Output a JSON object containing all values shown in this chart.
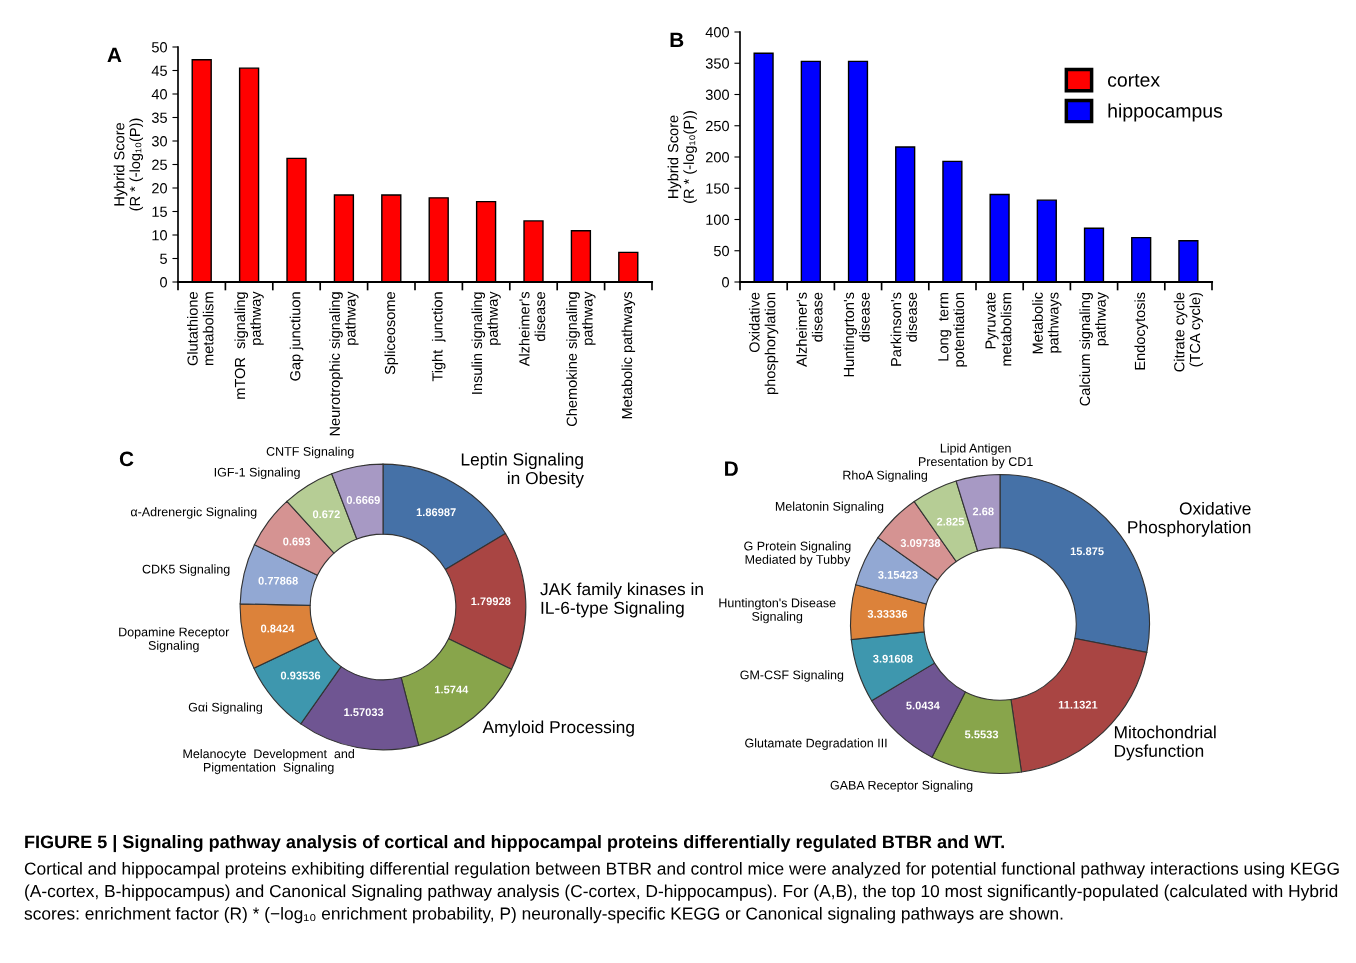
{
  "chart_data": [
    {
      "type": "bar",
      "title": "A",
      "ylabel": "Hybrid Score\n(R * (-log₁₀(P))",
      "categories": [
        "Glutathione\nmetabolism",
        "mTOR  signaling\npathway",
        "Gap junctiuon",
        "Neurotrophic signaling\npathway",
        "Spliceosome",
        "Tight  junction",
        "Insulin signaling\npathway",
        "Alzheimer's\ndisease",
        "Chemokine signaling\npathway",
        "Metabolic pathways"
      ],
      "series": [
        {
          "name": "cortex",
          "color": "#ff0000",
          "values": [
            47.3,
            45.5,
            26.3,
            18.5,
            18.5,
            17.9,
            17.1,
            13.0,
            10.9,
            6.3
          ]
        }
      ],
      "ylim": [
        0,
        50
      ],
      "yticks": [
        0,
        5,
        10,
        15,
        20,
        25,
        30,
        35,
        40,
        45,
        50
      ],
      "grid": false
    },
    {
      "type": "bar",
      "title": "B",
      "ylabel": "Hybrid Score\n(R * (-log₁₀(P))",
      "categories": [
        "Oxidative\nphosphorylation",
        "Alzheimer's\ndisease",
        "Huntingrton's\ndisease",
        "Parkinson's\ndisease",
        "Long  term\npotentiation",
        "Pyruvate\nmetabolism",
        "Metabolic\npathways",
        "Calcium signaling\npathway",
        "Endocytosis",
        "Citrate cycle\n(TCA cycle)"
      ],
      "series": [
        {
          "name": "hippocampus",
          "color": "#0000ff",
          "values": [
            366,
            353,
            353,
            216,
            193,
            140,
            131,
            86,
            71,
            66
          ]
        }
      ],
      "ylim": [
        0,
        400
      ],
      "yticks": [
        0,
        50,
        100,
        150,
        200,
        250,
        300,
        350,
        400
      ],
      "grid": false,
      "legend": "top right"
    },
    {
      "type": "donut",
      "title": "C",
      "categories": [
        "Leptin Signaling\nin Obesity",
        "JAK family kinases in\nIL-6-type Signaling",
        "Amyloid Processing",
        "Melanocyte  Development  and\nPigmentation  Signaling",
        "Gαi Signaling",
        "Dopamine Receptor\nSignaling",
        "CDK5 Signaling",
        "α-Adrenergic Signaling",
        "IGF-1 Signaling",
        "CNTF Signaling"
      ],
      "values": [
        1.86987,
        1.79928,
        1.5744,
        1.57033,
        0.93536,
        0.8424,
        0.77868,
        0.693,
        0.672,
        0.6669
      ],
      "colors": [
        "#4571a7",
        "#a94543",
        "#88a54b",
        "#6f5592",
        "#3e97ae",
        "#dc823a",
        "#92a8d3",
        "#d59392",
        "#b6cd95",
        "#a799c4"
      ],
      "data_labels": true
    },
    {
      "type": "donut",
      "title": "D",
      "categories": [
        "Oxidative\nPhosphorylation",
        "Mitochondrial\nDysfunction",
        "GABA Receptor Signaling",
        "Glutamate Degradation III",
        "GM-CSF Signaling",
        "Huntington's Disease\nSignaling",
        "G Protein Signaling\nMediated by Tubby",
        "Melatonin Signaling",
        "RhoA Signaling",
        "Lipid Antigen\nPresentation by CD1"
      ],
      "values": [
        15.875,
        11.1321,
        5.5533,
        5.0434,
        3.91608,
        3.33336,
        3.15423,
        3.09738,
        2.825,
        2.68
      ],
      "colors": [
        "#4571a7",
        "#a94543",
        "#88a54b",
        "#6f5592",
        "#3e97ae",
        "#dc823a",
        "#92a8d3",
        "#d59392",
        "#b6cd95",
        "#a799c4"
      ],
      "data_labels": true,
      "annotations": [
        "FIGURE 5 | Signaling pathway analysis of cortical and hippocampal proteins differentially regulated BTBR and WT.",
        "Cortical and hippocampal proteins exhibiting differential regulation between BTBR and control mice were analyzed for potential functional pathway interactions using KEGG (A-cortex, B-hippocampus) and Canonical Signaling pathway analysis (C-cortex, D-hippocampus). For (A,B), the top 10 most significantly-populated (calculated with Hybrid scores: enrichment factor (R) * (−log₁₀ enrichment probability, P) neuronally-specific KEGG or Canonical signaling pathways are shown."
      ]
    }
  ]
}
